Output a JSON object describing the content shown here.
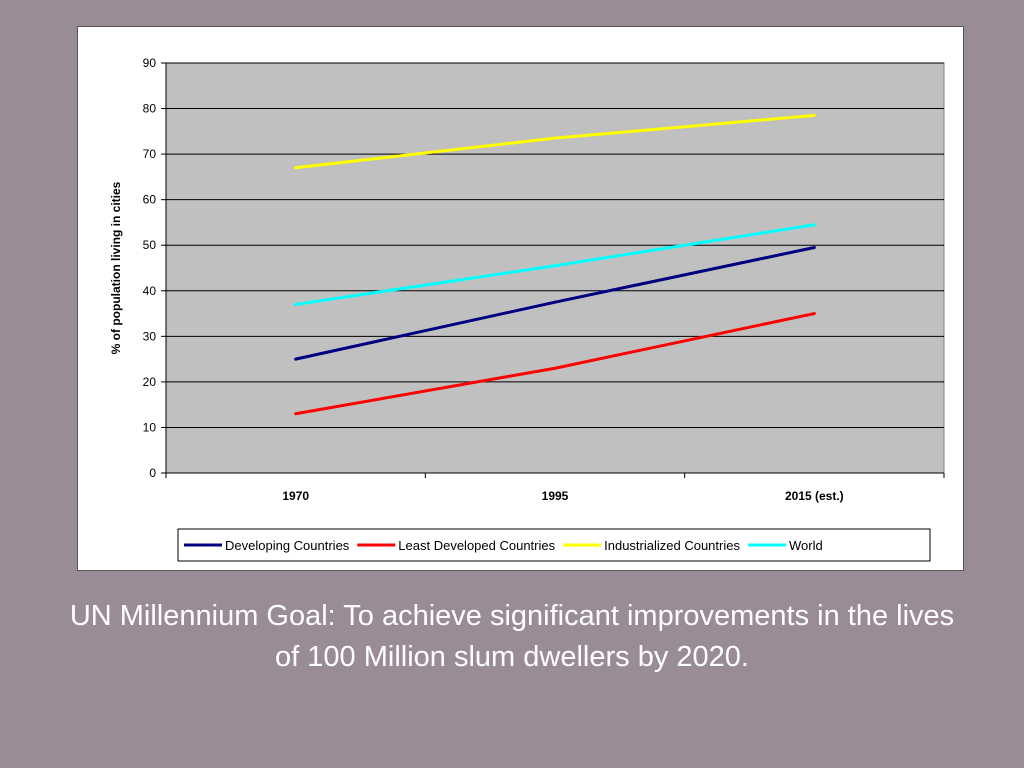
{
  "chart_data": {
    "type": "line",
    "categories": [
      "1970",
      "1995",
      "2015 (est.)"
    ],
    "ylabel": "% of population living in cities",
    "xlabel": "",
    "ylim": [
      0,
      90
    ],
    "yticks": [
      0,
      10,
      20,
      30,
      40,
      50,
      60,
      70,
      80,
      90
    ],
    "grid": true,
    "legend_position": "bottom",
    "plot_background": "#c0c0c0",
    "series": [
      {
        "name": "Developing Countries",
        "color": "#000080",
        "values": [
          25,
          37.5,
          49.5
        ]
      },
      {
        "name": "Least Developed Countries",
        "color": "#ff0000",
        "values": [
          13,
          23,
          35
        ]
      },
      {
        "name": "Industrialized Countries",
        "color": "#ffff00",
        "values": [
          67,
          73.5,
          78.5
        ]
      },
      {
        "name": "World",
        "color": "#00ffff",
        "values": [
          37,
          45.5,
          54.5
        ]
      }
    ]
  },
  "caption": "UN Millennium Goal: To achieve significant improvements in the lives of 100 Million slum dwellers by 2020."
}
